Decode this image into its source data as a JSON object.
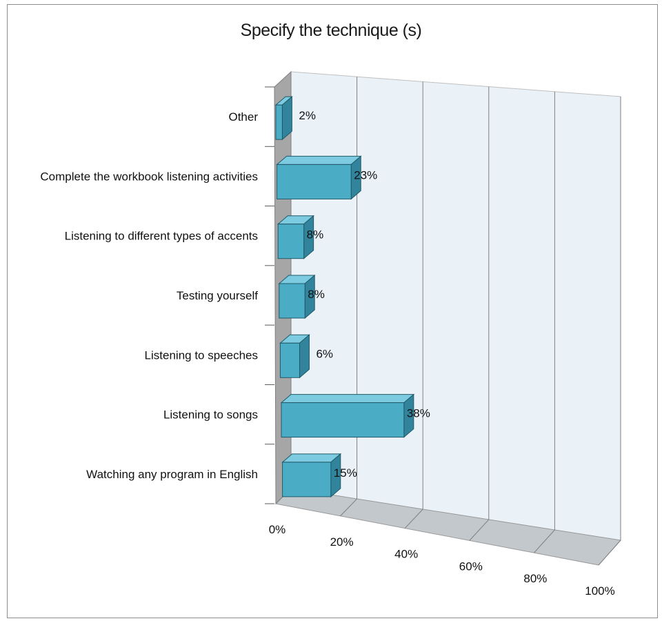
{
  "chart_data": {
    "type": "bar",
    "orientation": "horizontal",
    "style": "3d",
    "title": "Specify the technique (s)",
    "categories": [
      "Other",
      "Complete the workbook listening activities",
      "Listening to different types of accents",
      "Testing yourself",
      "Listening to speeches",
      "Listening to songs",
      "Watching any program in English"
    ],
    "values": [
      2,
      23,
      8,
      8,
      6,
      38,
      15
    ],
    "value_labels": [
      "2%",
      "23%",
      "8%",
      "8%",
      "6%",
      "38%",
      "15%"
    ],
    "xlim": [
      0,
      100
    ],
    "x_ticks": [
      "0%",
      "20%",
      "40%",
      "60%",
      "80%",
      "100%"
    ],
    "grid": true,
    "legend": "none",
    "colors": {
      "bar_front": "#4bacc6",
      "bar_top": "#7ccbe0",
      "bar_side": "#31849b",
      "bar_edge": "#215968",
      "wall": "#eaf2f8",
      "floor": "#c3c8cc",
      "side_wall": "#a6a6a6",
      "grid": "#7f7f7f"
    }
  }
}
